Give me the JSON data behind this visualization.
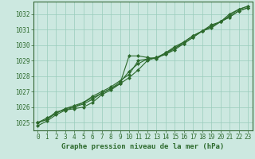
{
  "xlabel": "Graphe pression niveau de la mer (hPa)",
  "hours": [
    0,
    1,
    2,
    3,
    4,
    5,
    6,
    7,
    8,
    9,
    10,
    11,
    12,
    13,
    14,
    15,
    16,
    17,
    18,
    19,
    20,
    21,
    22,
    23
  ],
  "line1": [
    1025.0,
    1025.2,
    1025.7,
    1025.8,
    1025.9,
    1026.0,
    1026.3,
    1026.8,
    1027.1,
    1027.5,
    1029.3,
    1029.3,
    1029.2,
    1029.1,
    1029.5,
    1029.8,
    1030.2,
    1030.6,
    1030.9,
    1031.1,
    1031.5,
    1032.0,
    1032.3,
    1032.5
  ],
  "line2": [
    1025.0,
    1025.3,
    1025.6,
    1025.9,
    1026.0,
    1026.2,
    1026.5,
    1026.9,
    1027.2,
    1027.6,
    1028.3,
    1028.8,
    1029.1,
    1029.2,
    1029.5,
    1029.9,
    1030.2,
    1030.6,
    1030.9,
    1031.3,
    1031.5,
    1031.9,
    1032.3,
    1032.5
  ],
  "line3": [
    1024.8,
    1025.1,
    1025.5,
    1025.8,
    1026.0,
    1026.3,
    1026.7,
    1027.0,
    1027.3,
    1027.7,
    1028.1,
    1029.0,
    1029.1,
    1029.2,
    1029.4,
    1029.7,
    1030.1,
    1030.5,
    1030.9,
    1031.2,
    1031.5,
    1031.8,
    1032.2,
    1032.4
  ],
  "line4": [
    1025.0,
    1025.2,
    1025.6,
    1025.9,
    1026.1,
    1026.3,
    1026.6,
    1026.9,
    1027.2,
    1027.5,
    1027.9,
    1028.4,
    1029.0,
    1029.2,
    1029.4,
    1029.8,
    1030.1,
    1030.5,
    1030.9,
    1031.2,
    1031.5,
    1031.8,
    1032.2,
    1032.4
  ],
  "line_color": "#2d6a2d",
  "bg_color": "#cce8e0",
  "grid_color": "#99ccbb",
  "spine_color": "#336633",
  "ylim": [
    1024.5,
    1032.8
  ],
  "yticks": [
    1025,
    1026,
    1027,
    1028,
    1029,
    1030,
    1031,
    1032
  ],
  "xtick_labels": [
    "0",
    "1",
    "2",
    "3",
    "4",
    "5",
    "6",
    "7",
    "8",
    "9",
    "10",
    "11",
    "12",
    "13",
    "14",
    "15",
    "16",
    "17",
    "18",
    "19",
    "20",
    "21",
    "22",
    "23"
  ],
  "marker": "D",
  "marker_size": 2.0,
  "linewidth": 0.8,
  "xlabel_fontsize": 6.5,
  "tick_fontsize": 5.5
}
